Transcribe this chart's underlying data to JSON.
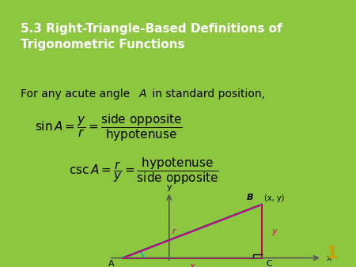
{
  "title": "5.3 Right-Triangle-Based Definitions of\nTrigonometric Functions",
  "title_bg": "#8dc63f",
  "title_color": "white",
  "title_fontsize": 11,
  "body_bg": "white",
  "body_border": "#8dc63f",
  "slide_bg": "#8dc63f",
  "text_intro": "For any acute angle ",
  "text_intro2": "A",
  "text_intro3": " in standard position,",
  "eq1_left": "sin\\,A = \\dfrac{y}{r} = \\dfrac{\\mathrm{side\\;opposite}}{\\mathrm{hypotenuse}}",
  "eq2_left": "\\csc\\,A = \\dfrac{r}{y} = \\dfrac{\\mathrm{hypotenuse}}{\\mathrm{side\\;opposite}}",
  "page_number": "1",
  "page_number_color": "#c8a000",
  "triangle_color": "#00aacc",
  "hypotenuse_color": "#cc0066",
  "vertical_color": "#cc0066",
  "horizontal_color": "#cc0066",
  "label_r_color": "#cc0066",
  "label_y_color": "#cc0066",
  "label_x_color": "#cc0066",
  "axis_color": "#555555"
}
